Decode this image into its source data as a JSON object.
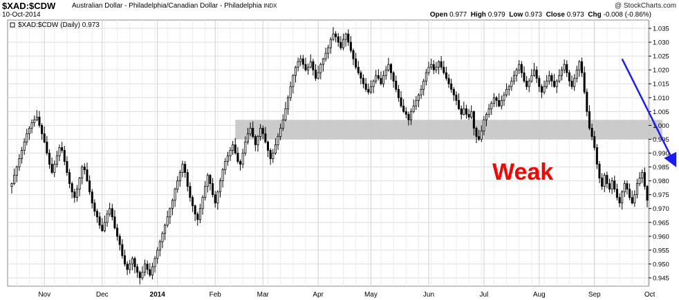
{
  "header": {
    "symbol": "$XAD:$CDW",
    "description": "Australian Dollar - Philadelphia/Canadian Dollar - Philadelphia",
    "exchange": "INDX",
    "date": "10-Oct-2014",
    "brand": "@ StockCharts.com",
    "ohlc": {
      "open_label": "Open",
      "open": "0.977",
      "high_label": "High",
      "high": "0.979",
      "low_label": "Low",
      "low": "0.973",
      "close_label": "Close",
      "close": "0.973",
      "chg_label": "Chg",
      "chg": "-0.008 (-0.86%)"
    }
  },
  "chart_data": {
    "type": "candlestick",
    "legend": "$XAD:$CDW (Daily) 0.973",
    "legend_placement": "top-left",
    "grid": true,
    "ylim": [
      0.942,
      1.038
    ],
    "y_ticks": [
      "1.035",
      "1.030",
      "1.025",
      "1.020",
      "1.015",
      "1.010",
      "1.005",
      "1.000",
      "0.995",
      "0.990",
      "0.985",
      "0.980",
      "0.975",
      "0.970",
      "0.965",
      "0.960",
      "0.955",
      "0.950",
      "0.945"
    ],
    "x_ticks": [
      {
        "label": "Nov",
        "index": 13
      },
      {
        "label": "Dec",
        "index": 36
      },
      {
        "label": "2014",
        "index": 58,
        "bold": true
      },
      {
        "label": "Feb",
        "index": 81
      },
      {
        "label": "Mar",
        "index": 100
      },
      {
        "label": "Apr",
        "index": 122
      },
      {
        "label": "May",
        "index": 143
      },
      {
        "label": "Jun",
        "index": 166
      },
      {
        "label": "Jul",
        "index": 188
      },
      {
        "label": "Aug",
        "index": 210
      },
      {
        "label": "Sep",
        "index": 232
      },
      {
        "label": "Oct",
        "index": 254
      }
    ],
    "annotation_text": "Weak",
    "annotation_color": "#ff0000",
    "arrow_color": "#1a1aff",
    "arrow": {
      "from_index": 243,
      "from_value": 1.024,
      "to_index": 264,
      "to_value": 0.986
    },
    "zone": {
      "from_index": 89,
      "to_index": 259,
      "low": 0.995,
      "high": 1.002,
      "color": "#c8c8c8"
    },
    "close_series": [
      0.979,
      0.982,
      0.985,
      0.988,
      0.991,
      0.994,
      0.997,
      0.999,
      1.001,
      1.002,
      1.003,
      1.0,
      0.997,
      0.994,
      0.99,
      0.986,
      0.983,
      0.986,
      0.989,
      0.992,
      0.991,
      0.987,
      0.983,
      0.979,
      0.976,
      0.974,
      0.977,
      0.981,
      0.985,
      0.984,
      0.98,
      0.976,
      0.972,
      0.969,
      0.967,
      0.964,
      0.962,
      0.965,
      0.968,
      0.97,
      0.967,
      0.963,
      0.96,
      0.957,
      0.953,
      0.95,
      0.948,
      0.95,
      0.952,
      0.949,
      0.947,
      0.945,
      0.947,
      0.95,
      0.948,
      0.946,
      0.949,
      0.952,
      0.955,
      0.958,
      0.961,
      0.964,
      0.967,
      0.97,
      0.973,
      0.977,
      0.98,
      0.983,
      0.986,
      0.983,
      0.978,
      0.974,
      0.971,
      0.968,
      0.966,
      0.97,
      0.974,
      0.978,
      0.982,
      0.979,
      0.975,
      0.972,
      0.976,
      0.98,
      0.984,
      0.987,
      0.989,
      0.991,
      0.993,
      0.99,
      0.987,
      0.986,
      0.99,
      0.994,
      0.997,
      0.999,
      0.996,
      0.993,
      0.996,
      0.999,
      0.997,
      0.994,
      0.991,
      0.988,
      0.99,
      0.993,
      0.996,
      0.999,
      1.002,
      1.006,
      1.01,
      1.014,
      1.018,
      1.021,
      1.023,
      1.024,
      1.022,
      1.02,
      1.021,
      1.023,
      1.02,
      1.017,
      1.019,
      1.022,
      1.024,
      1.026,
      1.028,
      1.031,
      1.033,
      1.032,
      1.03,
      1.028,
      1.031,
      1.033,
      1.03,
      1.027,
      1.024,
      1.021,
      1.019,
      1.017,
      1.015,
      1.013,
      1.012,
      1.014,
      1.016,
      1.018,
      1.017,
      1.015,
      1.018,
      1.02,
      1.022,
      1.019,
      1.016,
      1.013,
      1.01,
      1.007,
      1.005,
      1.004,
      1.002,
      1.005,
      1.007,
      1.009,
      1.011,
      1.013,
      1.016,
      1.019,
      1.021,
      1.022,
      1.02,
      1.021,
      1.023,
      1.021,
      1.019,
      1.017,
      1.015,
      1.013,
      1.011,
      1.009,
      1.006,
      1.004,
      1.006,
      1.004,
      1.003,
      1.005,
      0.999,
      0.996,
      0.995,
      0.998,
      1.002,
      1.004,
      1.006,
      1.008,
      1.01,
      1.009,
      1.007,
      1.009,
      1.011,
      1.013,
      1.014,
      1.016,
      1.018,
      1.02,
      1.022,
      1.019,
      1.016,
      1.014,
      1.016,
      1.018,
      1.02,
      1.017,
      1.014,
      1.012,
      1.014,
      1.016,
      1.018,
      1.016,
      1.014,
      1.016,
      1.018,
      1.02,
      1.022,
      1.019,
      1.016,
      1.014,
      1.017,
      1.02,
      1.023,
      1.019,
      1.012,
      1.005,
      0.999,
      0.996,
      0.992,
      0.986,
      0.981,
      0.978,
      0.982,
      0.979,
      0.977,
      0.98,
      0.977,
      0.974,
      0.972,
      0.976,
      0.979,
      0.977,
      0.974,
      0.972,
      0.975,
      0.979,
      0.981,
      0.983,
      0.978,
      0.973
    ],
    "open_series_first": 0.978
  }
}
